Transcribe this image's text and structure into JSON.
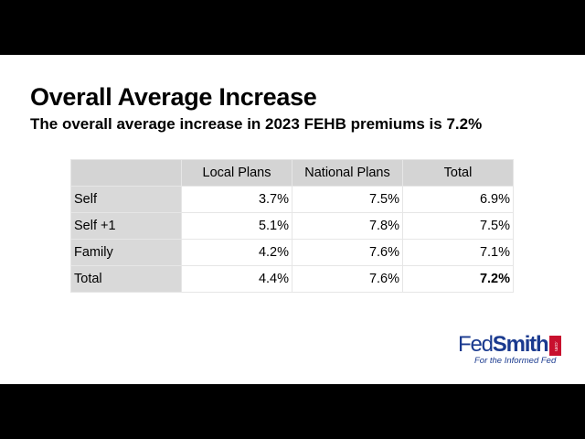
{
  "slide": {
    "title": "Overall Average Increase",
    "subtitle": "The overall average increase in 2023 FEHB premiums is 7.2%"
  },
  "table": {
    "headers": [
      "",
      "Local Plans",
      "National Plans",
      "Total"
    ],
    "rows": [
      {
        "label": "Self",
        "values": [
          "3.7%",
          "7.5%",
          "6.9%"
        ]
      },
      {
        "label": "Self +1",
        "values": [
          "5.1%",
          "7.8%",
          "7.5%"
        ]
      },
      {
        "label": "Family",
        "values": [
          "4.2%",
          "7.6%",
          "7.1%"
        ]
      },
      {
        "label": "Total",
        "values": [
          "4.4%",
          "7.6%",
          "7.2%"
        ]
      }
    ]
  },
  "logo": {
    "brand_part1": "Fed",
    "brand_part2": "Smith",
    "dotcom": ".com",
    "tagline": "For the Informed Fed",
    "colors": {
      "blue": "#1a3a8f",
      "red": "#c8102e"
    }
  }
}
